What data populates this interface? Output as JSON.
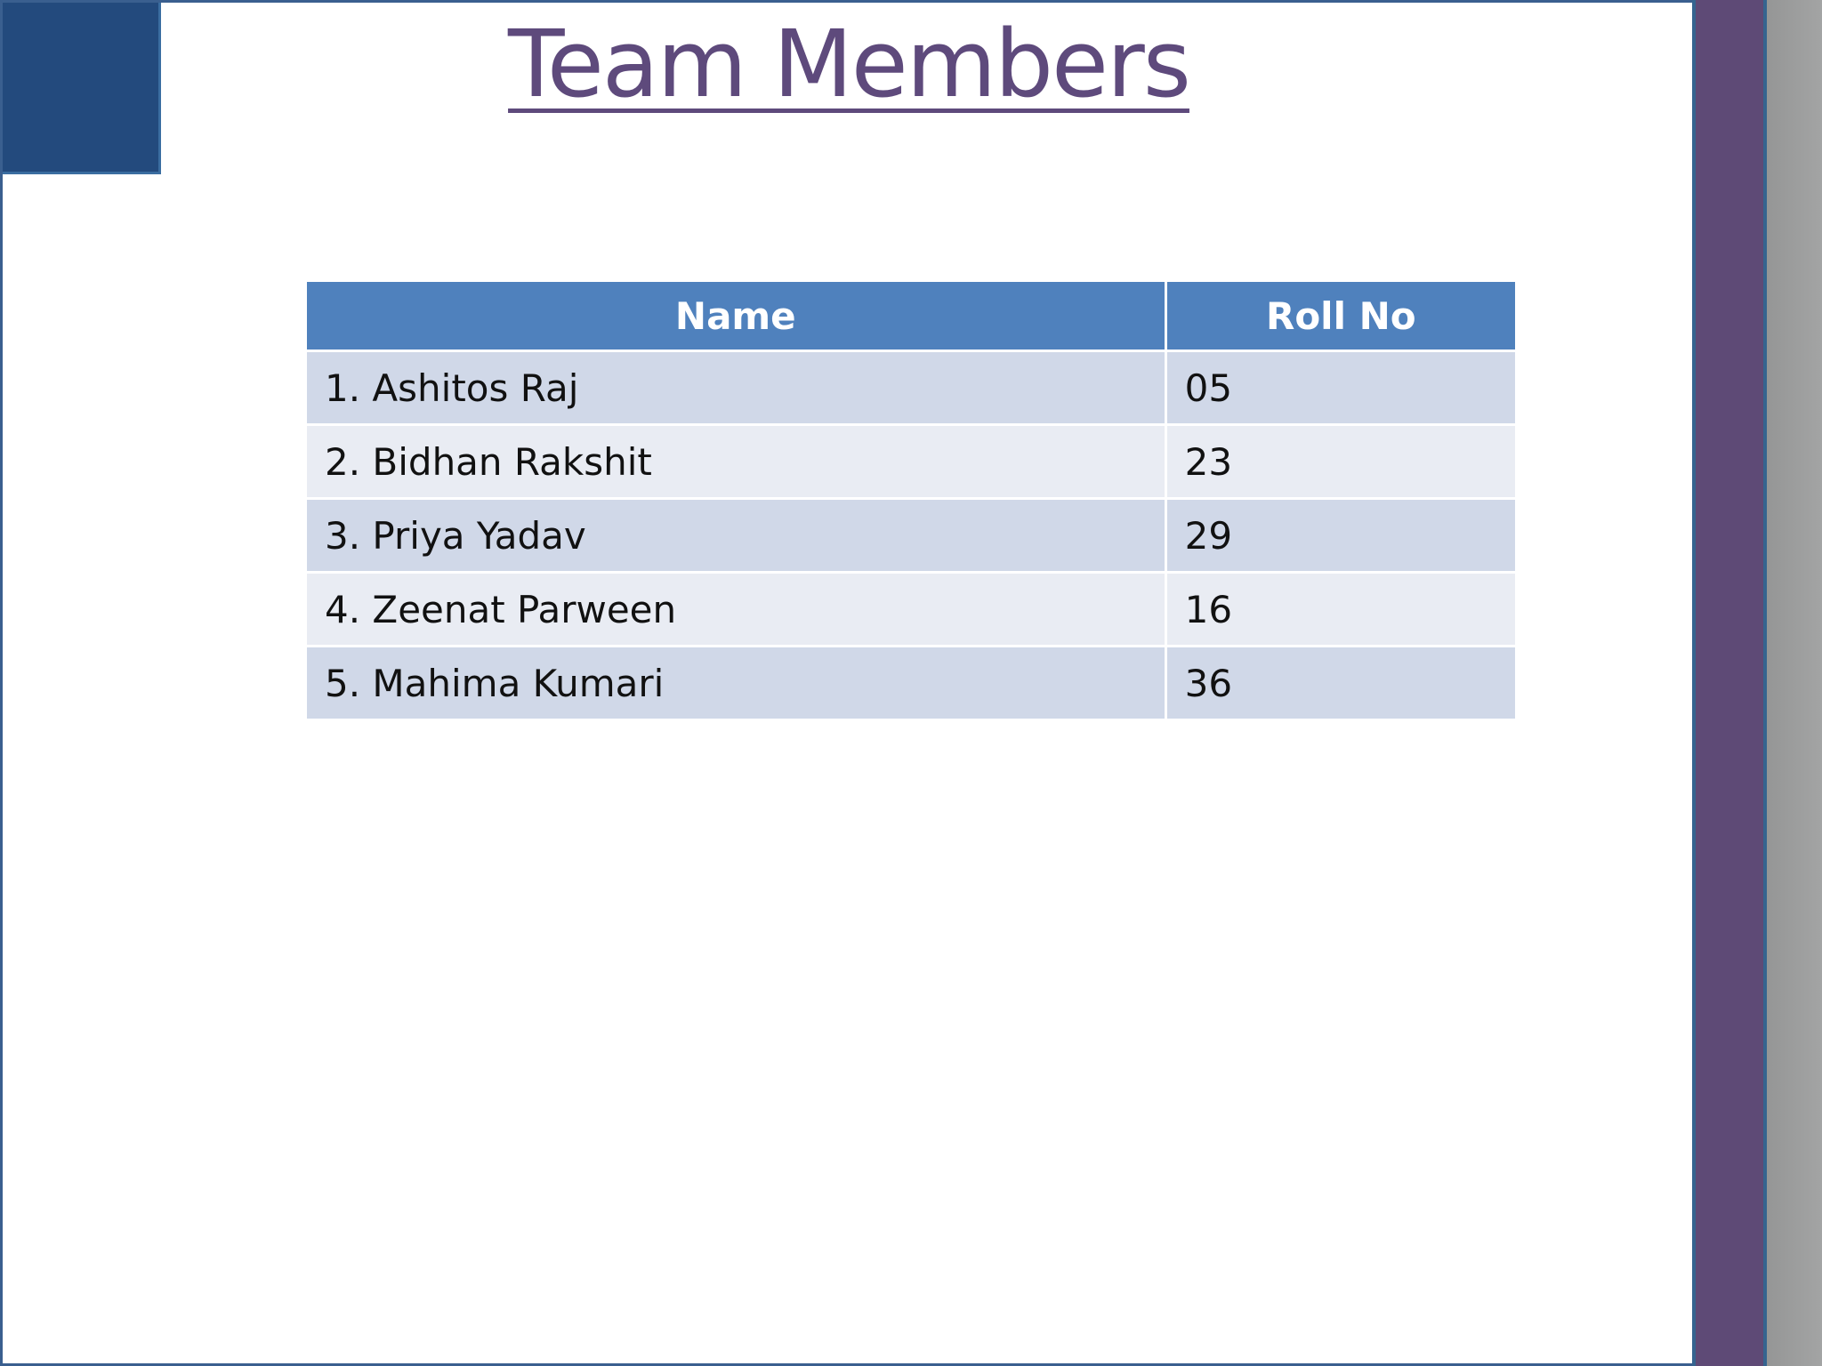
{
  "slide": {
    "title": "Team Members",
    "colors": {
      "accent_square": "#234a7d",
      "side_bar": "#5e4a76",
      "header": "#4f81bd",
      "row_odd": "#d0d8e8",
      "row_even": "#e9ecf3",
      "title": "#5e4a7c"
    }
  },
  "table": {
    "headers": [
      "Name",
      "Roll No"
    ],
    "rows": [
      {
        "name": "1. Ashitos Raj",
        "roll": "05"
      },
      {
        "name": "2. Bidhan Rakshit",
        "roll": "23"
      },
      {
        "name": "3. Priya Yadav",
        "roll": "29"
      },
      {
        "name": "4. Zeenat Parween",
        "roll": "16"
      },
      {
        "name": "5. Mahima Kumari",
        "roll": "36"
      }
    ]
  }
}
